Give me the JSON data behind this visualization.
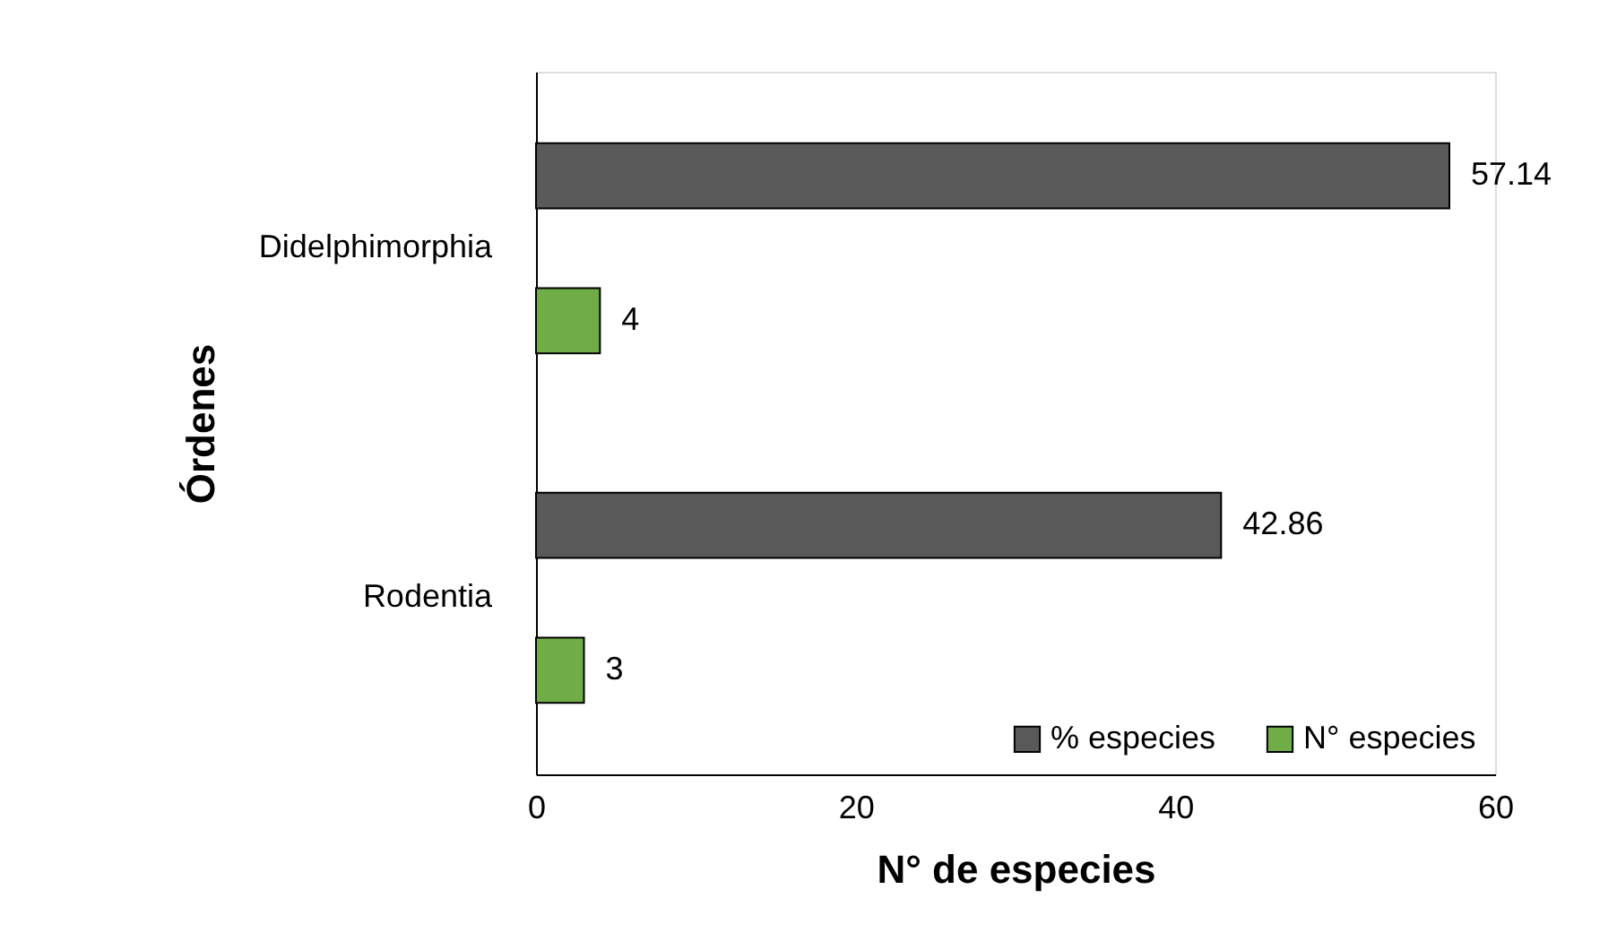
{
  "chart_data": {
    "type": "bar",
    "orientation": "horizontal",
    "xlabel": "N° de especies",
    "ylabel": "Órdenes",
    "categories": [
      "Didelphimorphia",
      "Rodentia"
    ],
    "series": [
      {
        "name": "% especies",
        "color": "#595959",
        "values": [
          57.14,
          42.86
        ]
      },
      {
        "name": "N° especies",
        "color": "#70ad47",
        "values": [
          4,
          3
        ]
      }
    ],
    "xlim": [
      0,
      60
    ],
    "xticks": [
      0,
      20,
      40,
      60
    ],
    "grid": false,
    "legend": "bottom right",
    "data_labels": true
  }
}
